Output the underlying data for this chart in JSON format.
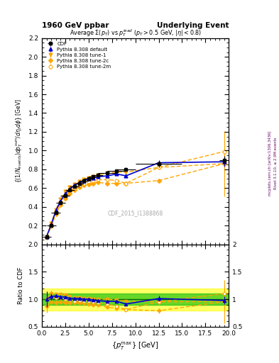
{
  "title_left": "1960 GeV ppbar",
  "title_right": "Underlying Event",
  "plot_title": "Average $\\Sigma(p_T)$ vs $p_T^{lead}$ ($p_T > 0.5$ GeV, $|\\eta| < 0.8$)",
  "xlabel": "$\\{p_T^{max}\\}$ [GeV]",
  "ylabel": "$\\{(1/N_{events}) dp_T^{sum}/d\\eta_t d\\phi\\}$ [GeV]",
  "ylabel_ratio": "Ratio to CDF",
  "watermark": "CDF_2015_I1388868",
  "right_label1": "Rivet 3.1.10, ≥ 2.9M events",
  "right_label2": "mcplots.cern.ch [arXiv:1306.3436]",
  "ylim_main": [
    0.0,
    2.2
  ],
  "ylim_ratio": [
    0.5,
    2.0
  ],
  "xlim": [
    0,
    20
  ],
  "yticks_main": [
    0.2,
    0.4,
    0.6,
    0.8,
    1.0,
    1.2,
    1.4,
    1.6,
    1.8,
    2.0,
    2.2
  ],
  "yticks_ratio": [
    0.5,
    1.0,
    1.5,
    2.0
  ],
  "cdf_x": [
    0.5,
    1.0,
    1.5,
    2.0,
    2.5,
    3.0,
    3.5,
    4.0,
    4.5,
    5.0,
    5.5,
    6.0,
    7.0,
    8.0,
    9.0,
    12.5,
    19.5
  ],
  "cdf_y": [
    0.08,
    0.2,
    0.34,
    0.44,
    0.52,
    0.58,
    0.62,
    0.65,
    0.68,
    0.7,
    0.72,
    0.74,
    0.76,
    0.78,
    0.8,
    0.86,
    0.9
  ],
  "cdf_yerr": [
    0.01,
    0.01,
    0.01,
    0.01,
    0.01,
    0.01,
    0.01,
    0.01,
    0.01,
    0.01,
    0.01,
    0.01,
    0.01,
    0.01,
    0.02,
    0.04,
    0.04
  ],
  "cdf_xerr": [
    0.5,
    0.5,
    0.5,
    0.5,
    0.5,
    0.5,
    0.5,
    0.5,
    0.5,
    0.5,
    0.5,
    0.5,
    1.0,
    1.0,
    1.0,
    2.5,
    0.5
  ],
  "py_default_x": [
    0.5,
    1.0,
    1.5,
    2.0,
    2.5,
    3.0,
    3.5,
    4.0,
    4.5,
    5.0,
    5.5,
    6.0,
    7.0,
    8.0,
    9.0,
    12.5,
    19.5
  ],
  "py_default_y": [
    0.08,
    0.21,
    0.36,
    0.46,
    0.54,
    0.59,
    0.63,
    0.66,
    0.68,
    0.7,
    0.71,
    0.72,
    0.73,
    0.75,
    0.73,
    0.87,
    0.88
  ],
  "py_default_yerr": [
    0.005,
    0.005,
    0.005,
    0.005,
    0.005,
    0.005,
    0.005,
    0.005,
    0.005,
    0.005,
    0.005,
    0.005,
    0.005,
    0.005,
    0.005,
    0.01,
    0.05
  ],
  "py_tune1_x": [
    0.5,
    1.0,
    1.5,
    2.0,
    2.5,
    3.0,
    3.5,
    4.0,
    4.5,
    5.0,
    5.5,
    6.0,
    7.0,
    8.0,
    9.0,
    12.5,
    19.5
  ],
  "py_tune1_y": [
    0.08,
    0.22,
    0.37,
    0.48,
    0.56,
    0.61,
    0.64,
    0.67,
    0.69,
    0.71,
    0.72,
    0.74,
    0.76,
    0.77,
    0.77,
    0.82,
    0.86
  ],
  "py_tune1_yerr": [
    0.005,
    0.005,
    0.005,
    0.005,
    0.005,
    0.005,
    0.005,
    0.005,
    0.005,
    0.005,
    0.005,
    0.005,
    0.005,
    0.01,
    0.01,
    0.02,
    0.35
  ],
  "py_tune2c_x": [
    0.5,
    1.0,
    1.5,
    2.0,
    2.5,
    3.0,
    3.5,
    4.0,
    4.5,
    5.0,
    5.5,
    6.0,
    7.0,
    8.0,
    9.0,
    12.5,
    19.5
  ],
  "py_tune2c_y": [
    0.07,
    0.19,
    0.32,
    0.42,
    0.49,
    0.54,
    0.58,
    0.61,
    0.63,
    0.64,
    0.65,
    0.66,
    0.65,
    0.65,
    0.65,
    0.68,
    0.86
  ],
  "py_tune2c_yerr": [
    0.005,
    0.005,
    0.005,
    0.005,
    0.005,
    0.005,
    0.005,
    0.005,
    0.005,
    0.005,
    0.005,
    0.005,
    0.005,
    0.01,
    0.01,
    0.02,
    0.1
  ],
  "py_tune2m_x": [
    0.5,
    1.0,
    1.5,
    2.0,
    2.5,
    3.0,
    3.5,
    4.0,
    4.5,
    5.0,
    5.5,
    6.0,
    7.0,
    8.0,
    9.0,
    12.5,
    19.5
  ],
  "py_tune2m_y": [
    0.08,
    0.21,
    0.35,
    0.45,
    0.52,
    0.57,
    0.6,
    0.63,
    0.65,
    0.67,
    0.68,
    0.69,
    0.69,
    0.68,
    0.65,
    0.82,
    0.99
  ],
  "py_tune2m_yerr": [
    0.005,
    0.005,
    0.005,
    0.005,
    0.005,
    0.005,
    0.005,
    0.005,
    0.005,
    0.005,
    0.005,
    0.005,
    0.005,
    0.01,
    0.01,
    0.02,
    0.12
  ],
  "color_cdf": "#000000",
  "color_default": "#0000cc",
  "color_tunes": "#ffa500",
  "band_yellow_lo": 0.8,
  "band_yellow_hi": 1.2,
  "band_yellow_color": "#ffff00",
  "band_yellow_alpha": 0.6,
  "band_green_lo": 0.9,
  "band_green_hi": 1.1,
  "band_green_color": "#00bb00",
  "band_green_alpha": 0.6
}
